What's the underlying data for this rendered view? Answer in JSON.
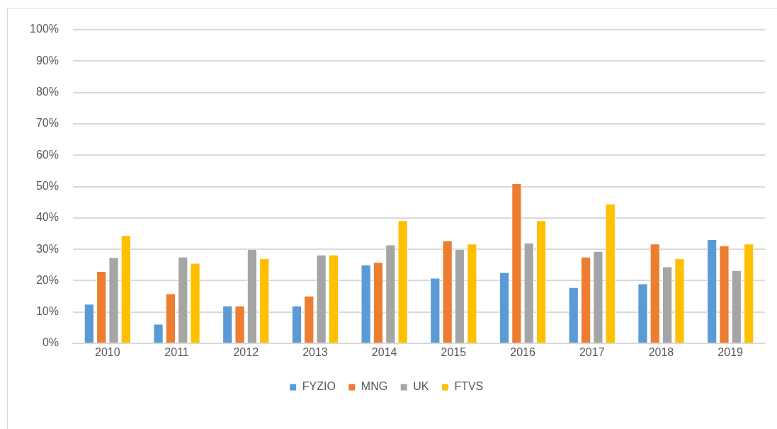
{
  "chart_data": {
    "type": "bar",
    "categories": [
      "2010",
      "2011",
      "2012",
      "2013",
      "2014",
      "2015",
      "2016",
      "2017",
      "2018",
      "2019"
    ],
    "series": [
      {
        "name": "FYZIO",
        "color": "#5b9bd5",
        "values": [
          12.6,
          6.2,
          12.0,
          12.0,
          25.1,
          20.9,
          22.7,
          17.9,
          19.1,
          33.2
        ]
      },
      {
        "name": "MNG",
        "color": "#ed7d31",
        "values": [
          23.0,
          15.9,
          12.0,
          15.2,
          25.9,
          32.8,
          51.0,
          27.6,
          31.8,
          31.2
        ]
      },
      {
        "name": "UK",
        "color": "#a5a5a5",
        "values": [
          27.4,
          27.6,
          30.1,
          28.3,
          31.5,
          30.1,
          32.1,
          29.4,
          24.5,
          23.3
        ]
      },
      {
        "name": "FTVS",
        "color": "#ffc000",
        "values": [
          34.5,
          25.6,
          27.1,
          28.3,
          39.2,
          31.8,
          39.2,
          44.5,
          27.1,
          31.8
        ]
      }
    ],
    "ylim": [
      0,
      100
    ],
    "yticks": [
      {
        "value": 0,
        "label": "0%"
      },
      {
        "value": 10,
        "label": "10%"
      },
      {
        "value": 20,
        "label": "20%"
      },
      {
        "value": 30,
        "label": "30%"
      },
      {
        "value": 40,
        "label": "40%"
      },
      {
        "value": 50,
        "label": "50%"
      },
      {
        "value": 60,
        "label": "60%"
      },
      {
        "value": 70,
        "label": "70%"
      },
      {
        "value": 80,
        "label": "80%"
      },
      {
        "value": 90,
        "label": "90%"
      },
      {
        "value": 100,
        "label": "100%"
      }
    ],
    "grid": "y",
    "legend": "bottom"
  }
}
